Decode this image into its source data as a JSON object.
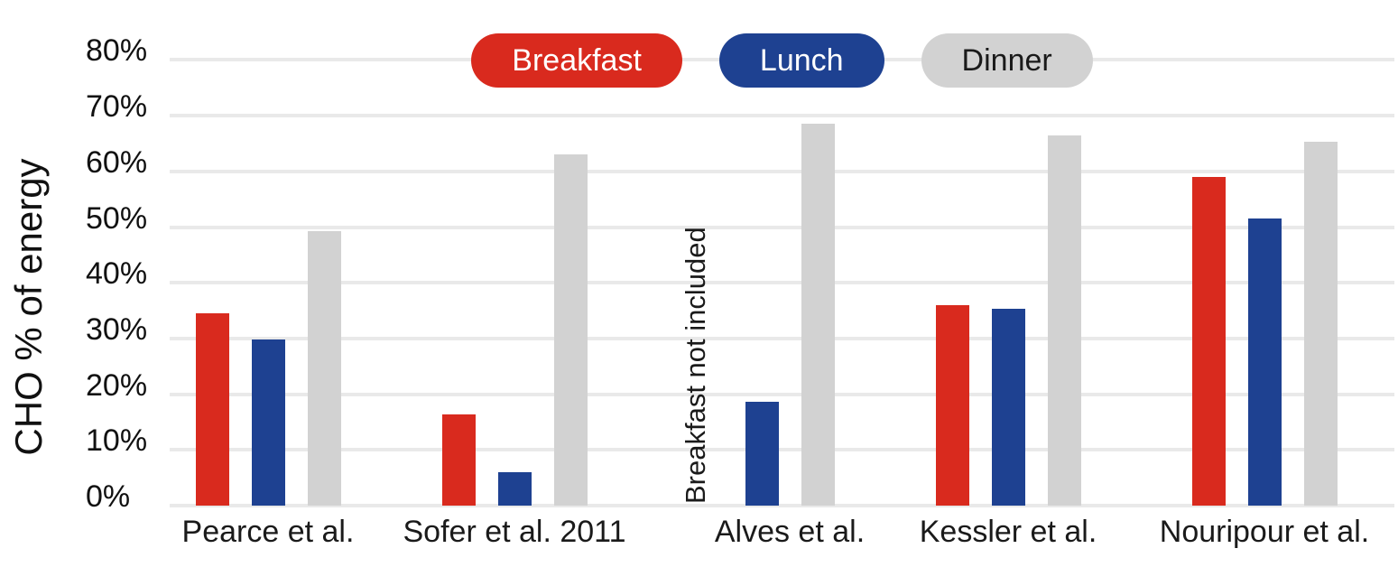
{
  "chart_data": {
    "type": "bar",
    "title": "",
    "xlabel": "",
    "ylabel": "CHO % of energy",
    "ylim": [
      0,
      80
    ],
    "yticks": [
      80,
      70,
      60,
      50,
      40,
      30,
      20,
      10,
      0
    ],
    "ytick_suffix": "%",
    "grid": true,
    "legend_position": "top-center",
    "categories": [
      "Pearce et al.",
      "Sofer et al. 2011",
      "Alves et al.",
      "Kessler et al.",
      "Nouripour et al."
    ],
    "series": [
      {
        "name": "Breakfast",
        "color": "#d92a1e",
        "label_text_color": "#ffffff",
        "values": [
          34.5,
          16.3,
          null,
          36.0,
          59.0
        ]
      },
      {
        "name": "Lunch",
        "color": "#1e4191",
        "label_text_color": "#ffffff",
        "values": [
          29.9,
          6.0,
          18.6,
          35.3,
          51.5
        ]
      },
      {
        "name": "Dinner",
        "color": "#d2d2d2",
        "label_text_color": "#1a1a1a",
        "values": [
          49.2,
          63.0,
          68.6,
          66.5,
          65.3
        ]
      }
    ],
    "annotation": {
      "text": "Breakfast not included",
      "category_index": 2,
      "series_index": 0
    }
  },
  "colors": {
    "background": "#ffffff",
    "gridline": "#e9e9e9",
    "axis_text": "#111111",
    "category_text": "#1a1a1a"
  }
}
